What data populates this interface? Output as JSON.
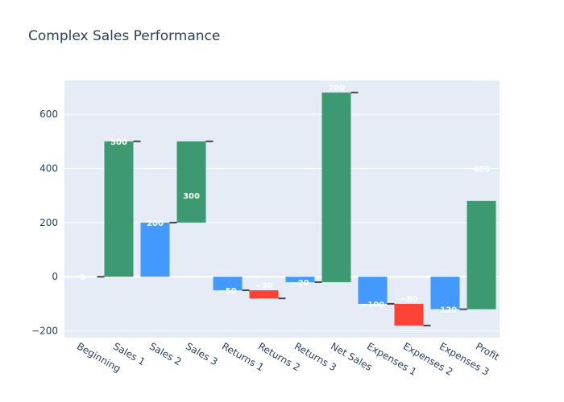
{
  "chart_data": {
    "type": "waterfall",
    "title": "Complex Sales Performance",
    "xlabel": "",
    "ylabel": "",
    "ylim": [
      -225,
      725
    ],
    "yticks": [
      -200,
      0,
      200,
      400,
      600
    ],
    "ytick_labels": [
      "−200",
      "0",
      "200",
      "400",
      "600"
    ],
    "categories": [
      "Beginning",
      "Sales 1",
      "Sales 2",
      "Sales 3",
      "Returns 1",
      "Returns 2",
      "Returns 3",
      "Net Sales",
      "Expenses 1",
      "Expenses 2",
      "Expenses 3",
      "Profit"
    ],
    "bars": [
      {
        "base": 0,
        "top": 0,
        "label": "0",
        "color": "#3d9970",
        "label_value": 0
      },
      {
        "base": 0,
        "top": 500,
        "label": "500",
        "color": "#3d9970",
        "label_value": 500
      },
      {
        "base": 0,
        "top": 200,
        "label": "200",
        "color": "#4499ff",
        "label_value": 200
      },
      {
        "base": 200,
        "top": 500,
        "label": "300",
        "color": "#3d9970",
        "label_value": 300
      },
      {
        "base": -50,
        "top": 0,
        "label": "−50",
        "color": "#4499ff",
        "label_value": -50
      },
      {
        "base": -80,
        "top": -50,
        "label": "−30",
        "color": "#ff4136",
        "label_value": -30
      },
      {
        "base": -20,
        "top": 0,
        "label": "−20",
        "color": "#4499ff",
        "label_value": -20
      },
      {
        "base": -20,
        "top": 680,
        "label": "700",
        "color": "#3d9970",
        "label_value": 700
      },
      {
        "base": -100,
        "top": 0,
        "label": "−100",
        "color": "#4499ff",
        "label_value": -100
      },
      {
        "base": -180,
        "top": -100,
        "label": "−80",
        "color": "#ff4136",
        "label_value": -80
      },
      {
        "base": -120,
        "top": 0,
        "label": "−120",
        "color": "#4499ff",
        "label_value": -120
      },
      {
        "base": -120,
        "top": 280,
        "label": "400",
        "color": "#3d9970",
        "label_value": 400
      }
    ],
    "connectors": [
      {
        "after": 0,
        "value": 0
      },
      {
        "after": 1,
        "value": 500
      },
      {
        "after": 2,
        "value": 200
      },
      {
        "after": 3,
        "value": 500
      },
      {
        "after": 4,
        "value": -50
      },
      {
        "after": 5,
        "value": -80
      },
      {
        "after": 6,
        "value": -20
      },
      {
        "after": 7,
        "value": 680
      },
      {
        "after": 8,
        "value": -100
      },
      {
        "after": 9,
        "value": -180
      },
      {
        "after": 10,
        "value": -120
      }
    ],
    "label_y_values": [
      0,
      500,
      200,
      300,
      -50,
      -30,
      -20,
      700,
      -100,
      -80,
      -120,
      400
    ],
    "colors": {
      "increase": "#3d9970",
      "decrease": "#ff4136",
      "measure": "#4499ff",
      "plot_bg": "#e5ecf6",
      "grid": "#ffffff",
      "text": "#2a3f5f",
      "connector": "#444444"
    }
  }
}
